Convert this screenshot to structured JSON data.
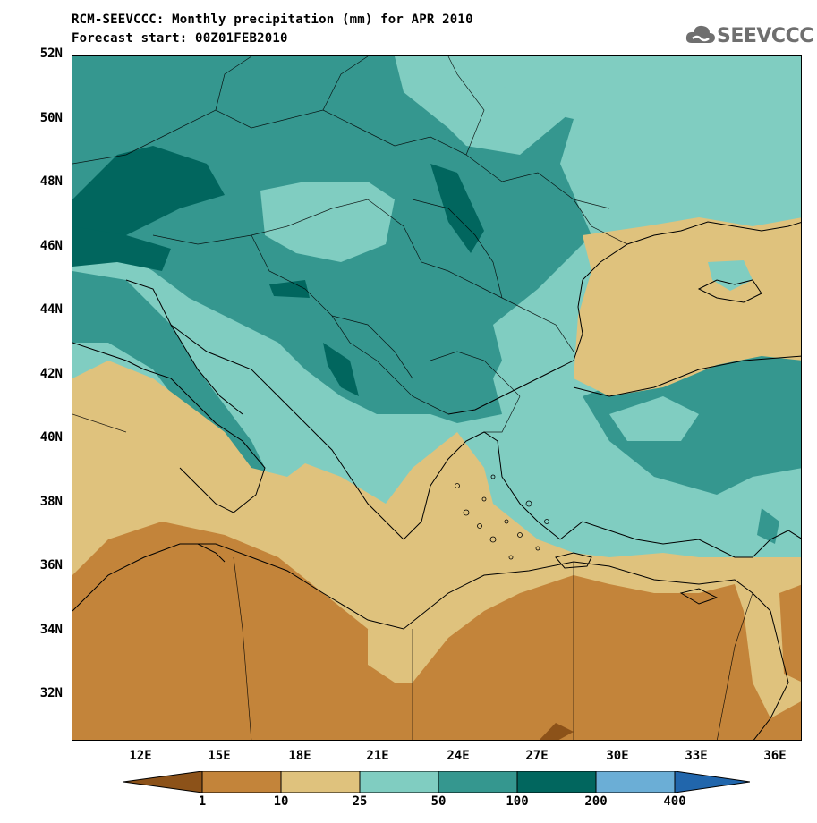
{
  "title": {
    "line1": "RCM-SEEVCCC: Monthly precipitation (mm) for APR 2010",
    "line2": "Forecast start: 00Z01FEB2010"
  },
  "logo": {
    "text": "SEEVCCC",
    "icon": "cloud-icon"
  },
  "axes": {
    "lat_labels": [
      "52N",
      "50N",
      "48N",
      "46N",
      "44N",
      "42N",
      "40N",
      "38N",
      "36N",
      "34N",
      "32N"
    ],
    "lon_labels": [
      "12E",
      "15E",
      "18E",
      "21E",
      "24E",
      "27E",
      "30E",
      "33E",
      "36E"
    ]
  },
  "legend": {
    "labels": [
      "1",
      "10",
      "25",
      "50",
      "100",
      "200",
      "400"
    ],
    "colors": [
      "#8c5219",
      "#c3843a",
      "#dfc27d",
      "#80cdc1",
      "#35978f",
      "#01665e",
      "#6baed6",
      "#2166ac"
    ]
  },
  "colors": {
    "sea_dry": "#dfc27d",
    "desert": "#c3843a",
    "teal_light": "#80cdc1",
    "teal_mid": "#35978f",
    "teal_dark": "#01665e"
  }
}
